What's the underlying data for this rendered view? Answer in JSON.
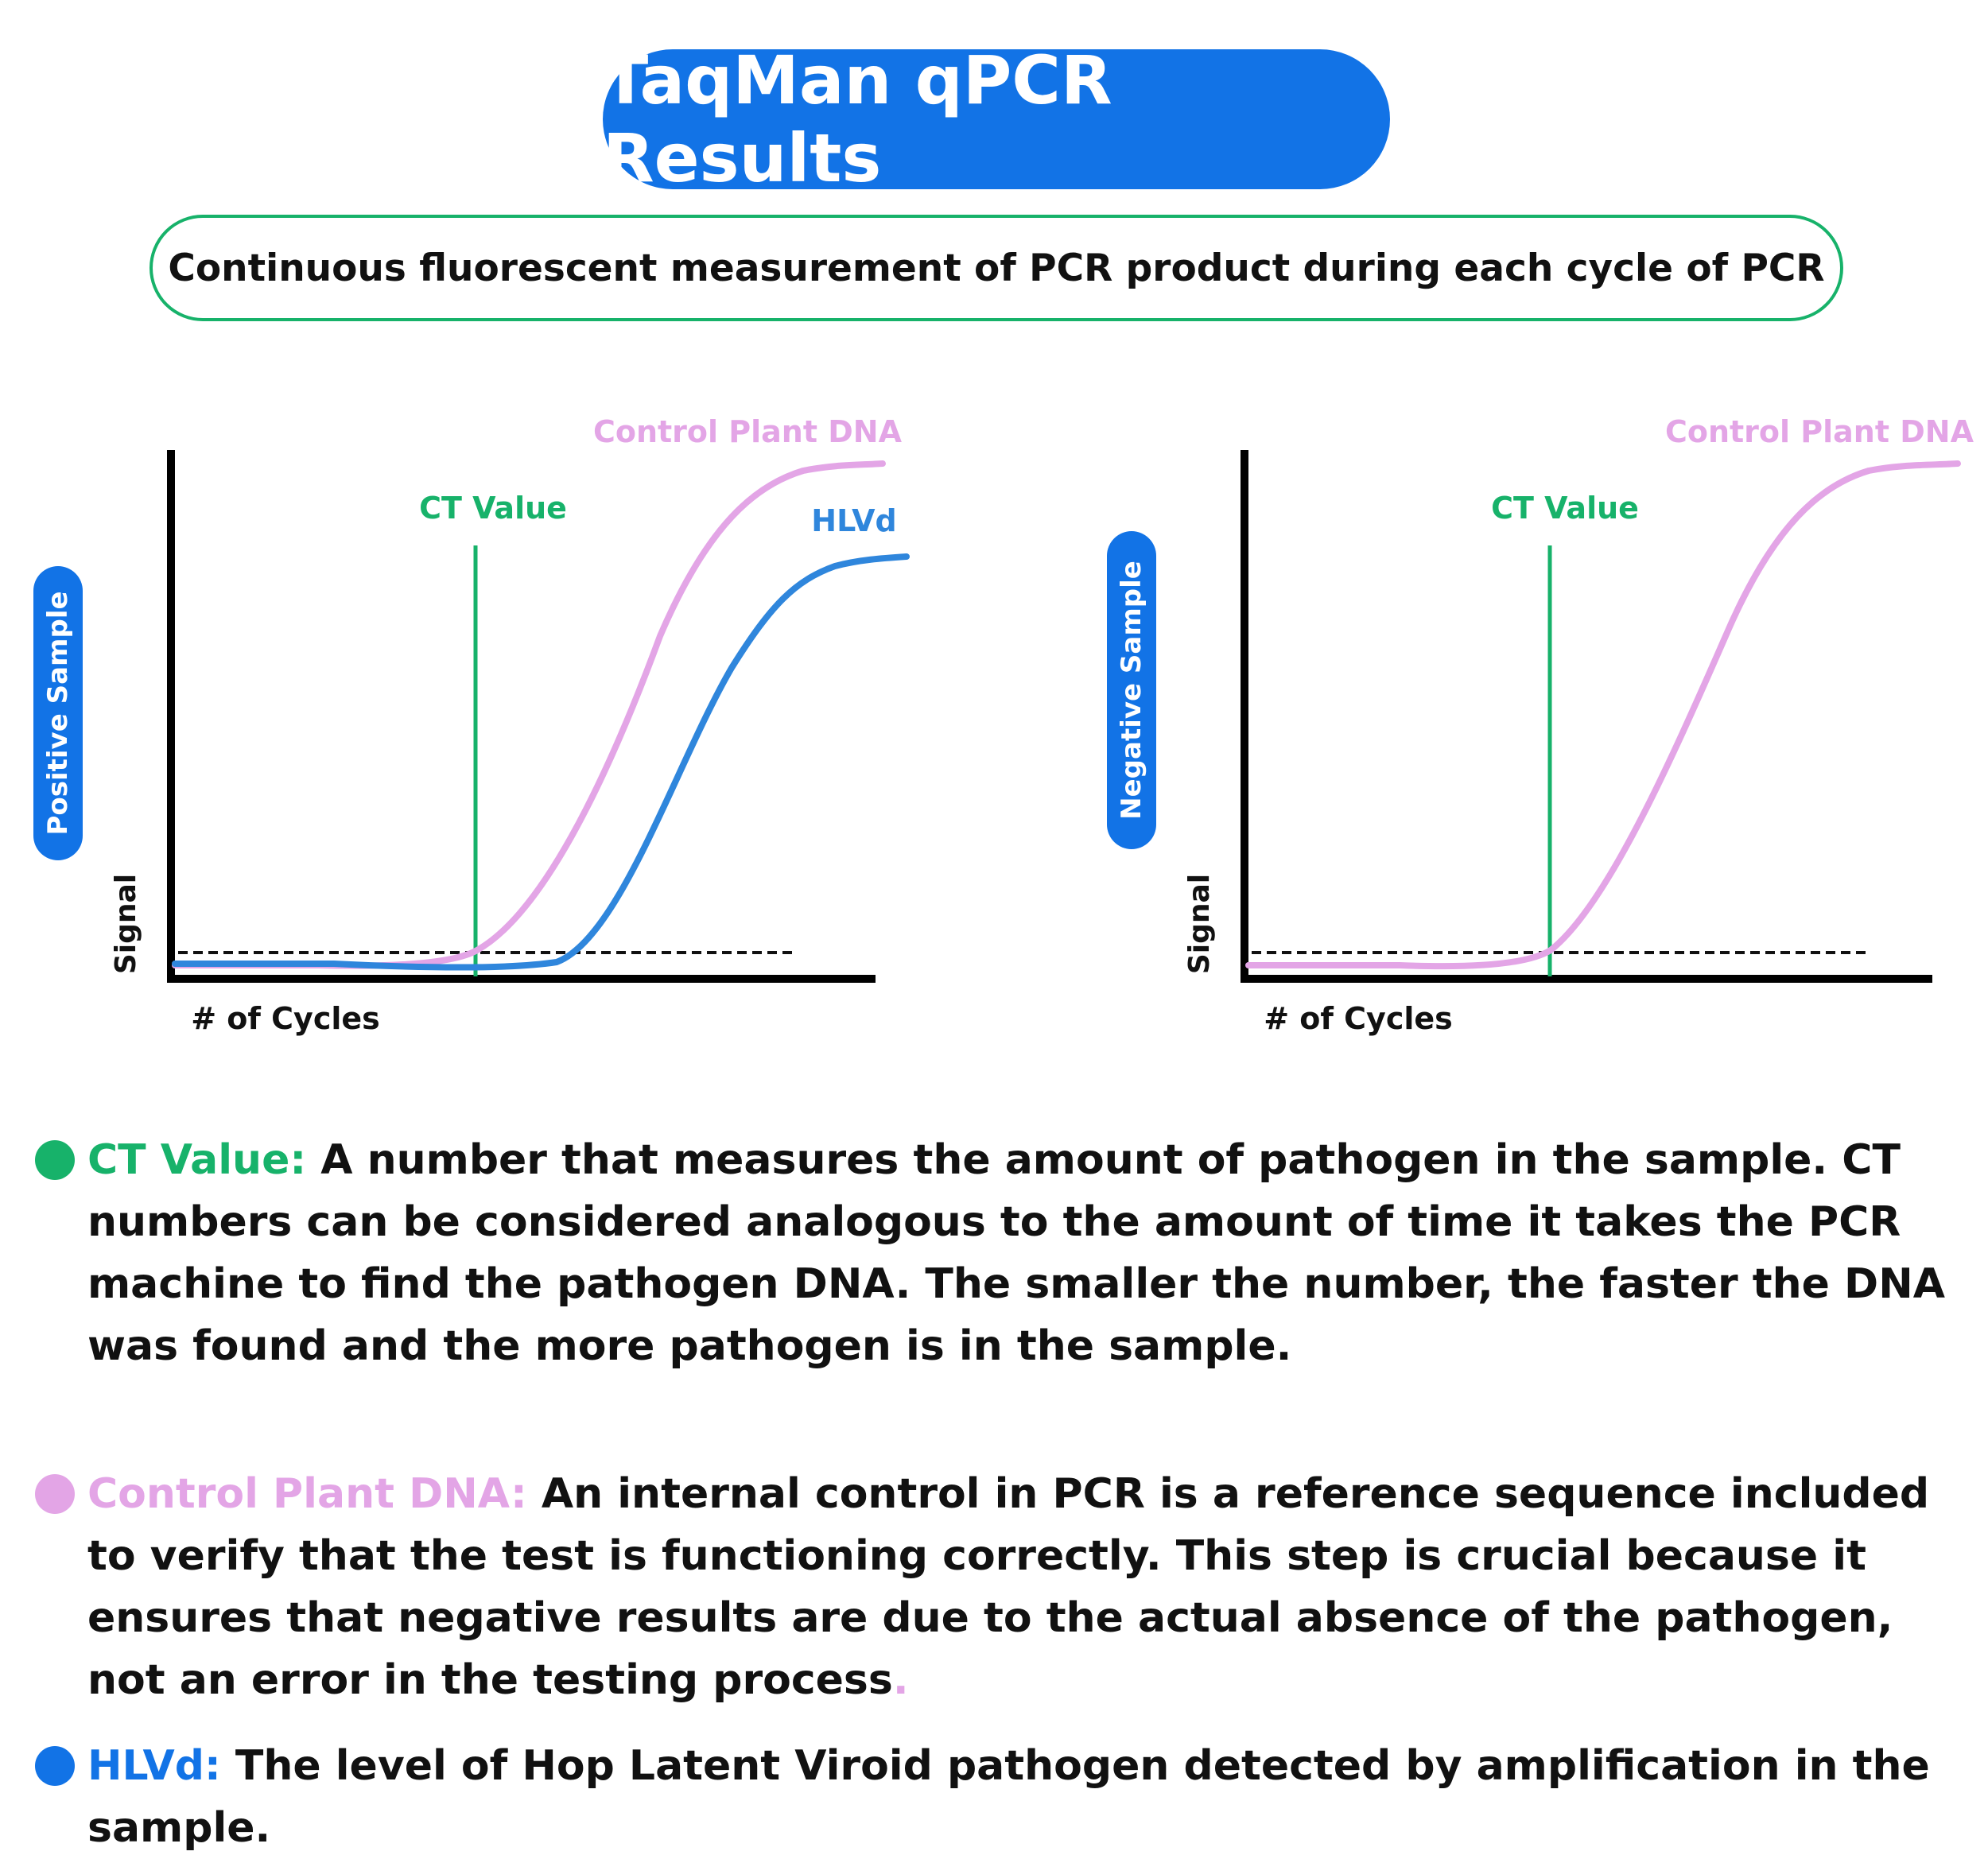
{
  "header": {
    "title": "TaqMan qPCR Results",
    "subtitle": "Continuous fluorescent measurement of PCR product during each cycle of PCR"
  },
  "colors": {
    "blue": "#1273e6",
    "hlvd_line": "#2f86dc",
    "green": "#17b26a",
    "pink": "#e3a5e6"
  },
  "charts": [
    {
      "sample_label": "Positive Sample",
      "ct_label": "CT Value",
      "y_label": "Signal",
      "x_label": "# of Cycles",
      "series": [
        "Control Plant DNA",
        "HLVd"
      ]
    },
    {
      "sample_label": "Negative Sample",
      "ct_label": "CT Value",
      "y_label": "Signal",
      "x_label": "# of Cycles",
      "series": [
        "Control Plant DNA"
      ]
    }
  ],
  "legend": [
    {
      "term": "CT Value:",
      "text": " A number that measures the amount of pathogen in the sample. CT numbers can be considered analogous to the amount of time it takes the PCR machine to find the pathogen DNA. The smaller the number, the faster the DNA was found and the more pathogen is in the sample.",
      "color": "#17b26a"
    },
    {
      "term": "Control Plant DNA:",
      "text": " An internal control in PCR is a reference sequence included to verify that the test is functioning correctly. This step is crucial because it ensures that negative results are due to the actual absence of the pathogen, not an error in the testing process",
      "trailing": ".",
      "color": "#e3a5e6"
    },
    {
      "term": "HLVd:",
      "text": " The level of Hop Latent Viroid pathogen detected by amplification in the sample.",
      "color": "#1273e6"
    }
  ]
}
